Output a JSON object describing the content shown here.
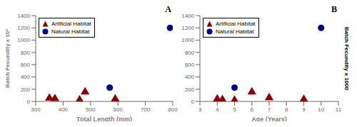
{
  "chart_data": [
    {
      "type": "scatter",
      "title": "A",
      "xlabel": "Total Length (mm)",
      "ylabel": "Batch Fecundity x 10³",
      "xlim": [
        300,
        800
      ],
      "ylim": [
        0,
        1400
      ],
      "xticks": [
        300,
        400,
        500,
        600,
        700,
        800
      ],
      "yticks": [
        0,
        200,
        400,
        600,
        800,
        1000,
        1200,
        1400
      ],
      "grid": false,
      "legend": "upper left",
      "series": [
        {
          "name": "Artificial Habitat",
          "color": "#8B0000",
          "marker": "triangle",
          "x": [
            350,
            370,
            460,
            480,
            590
          ],
          "values": [
            55,
            45,
            25,
            155,
            40
          ]
        },
        {
          "name": "Natural Habitat",
          "color": "#00008B",
          "marker": "circle",
          "x": [
            570,
            790
          ],
          "values": [
            225,
            1200
          ]
        }
      ]
    },
    {
      "type": "scatter",
      "title": "B",
      "xlabel": "Age (Years)",
      "ylabel": "Batch Fecundity x 1000",
      "xlim": [
        3,
        11
      ],
      "ylim": [
        0,
        1400
      ],
      "xticks": [
        3,
        4,
        5,
        6,
        7,
        8,
        9,
        10,
        11
      ],
      "yticks": [
        0,
        200,
        400,
        600,
        800,
        1000,
        1200,
        1400
      ],
      "grid": false,
      "legend": "upper left",
      "series": [
        {
          "name": "Artificial Habitat",
          "color": "#8B0000",
          "marker": "triangle",
          "x": [
            4,
            4.3,
            5,
            6,
            7,
            9
          ],
          "values": [
            40,
            30,
            20,
            155,
            60,
            35
          ]
        },
        {
          "name": "Natural Habitat",
          "color": "#00008B",
          "marker": "circle",
          "x": [
            5,
            10
          ],
          "values": [
            225,
            1200
          ]
        }
      ]
    }
  ]
}
